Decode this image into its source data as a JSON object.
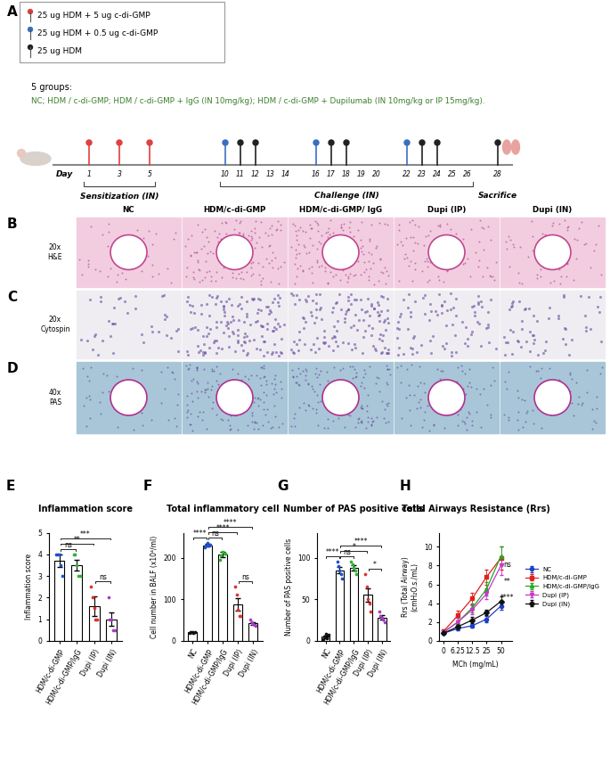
{
  "panel_a": {
    "panel_label": "A",
    "legend": [
      {
        "text": "25 ug HDM + 5 ug c-di-GMP",
        "color": "#e04040"
      },
      {
        "text": "25 ug HDM + 0.5 ug c-di-GMP",
        "color": "#3a6fc0"
      },
      {
        "text": "25 ug HDM",
        "color": "#222222"
      }
    ],
    "groups_heading": "5 groups:",
    "groups_text": "NC; HDM / c-di-GMP; HDM / c-di-GMP + IgG (IN 10mg/kg); HDM / c-di-GMP + Dupilumab (IN 10mg/kg or IP 15mg/kg).",
    "timeline": {
      "day_label": "Day",
      "days": [
        1,
        3,
        5,
        10,
        11,
        12,
        13,
        14,
        16,
        17,
        18,
        19,
        20,
        22,
        23,
        24,
        25,
        26,
        28
      ],
      "pins": [
        {
          "days": [
            1,
            3,
            5
          ],
          "legend": 0
        },
        {
          "days": [
            10,
            16,
            22
          ],
          "legend": 1
        },
        {
          "days": [
            11,
            12,
            17,
            18,
            23,
            24,
            28
          ],
          "legend": 2
        }
      ],
      "phases": [
        {
          "label": "Sensitization (IN)",
          "from": 1,
          "to": 5
        },
        {
          "label": "Challenge (IN)",
          "from": 10,
          "to": 26
        },
        {
          "label": "Sacrifice",
          "from": 28,
          "to": 28
        }
      ]
    }
  },
  "image_panels": {
    "columns": [
      "NC",
      "HDM/c-di-GMP",
      "HDM/c-di-GMP/ IgG",
      "Dupi (IP)",
      "Dupi (IN)"
    ],
    "rows": [
      {
        "panel_label": "B",
        "magnification": "20x",
        "stain": "H&E"
      },
      {
        "panel_label": "C",
        "magnification": "20x",
        "stain": "Cytospin"
      },
      {
        "panel_label": "D",
        "magnification": "40x",
        "stain": "PAS"
      }
    ]
  },
  "chart_data": [
    {
      "type": "bar",
      "panel_label": "E",
      "title": "Inflammation score",
      "y_label": "Inflammation score",
      "categories": [
        "HDM/c-di-GMP",
        "HDM/c-di-GMP/IgG",
        "Dupi (IP)",
        "Dupi (IN)"
      ],
      "values": [
        3.7,
        3.5,
        1.6,
        1.0
      ],
      "errors": [
        0.3,
        0.25,
        0.45,
        0.3
      ],
      "points": [
        [
          4,
          4,
          4,
          3.5,
          3
        ],
        [
          4,
          4,
          3.5,
          3,
          3
        ],
        [
          2.5,
          2,
          1.5,
          1,
          1
        ],
        [
          2,
          1,
          1,
          0.5,
          0.5
        ]
      ],
      "colors": [
        "#1f4fd0",
        "#33b033",
        "#e03030",
        "#a040c0"
      ],
      "ylim": [
        0,
        5
      ],
      "yticks": [
        0,
        1,
        2,
        3,
        4,
        5
      ],
      "significance": [
        {
          "between": [
            "HDM/c-di-GMP",
            "HDM/c-di-GMP/IgG"
          ],
          "label": "ns"
        },
        {
          "between": [
            "Dupi (IP)",
            "Dupi (IN)"
          ],
          "label": "ns"
        },
        {
          "between": [
            "HDM/c-di-GMP",
            "Dupi (IP)"
          ],
          "label": "**"
        },
        {
          "between": [
            "HDM/c-di-GMP",
            "Dupi (IN)"
          ],
          "label": "***"
        }
      ]
    },
    {
      "type": "bar",
      "panel_label": "F",
      "title": "Total inflammatory cell",
      "y_label": "Cell number in BALF (x10⁴/ml)",
      "categories": [
        "NC",
        "HDM/c-di-GMP",
        "HDM/c-di-GMP/IgG",
        "Dupi (IP)",
        "Dupi (IN)"
      ],
      "values": [
        20,
        230,
        207,
        87,
        42
      ],
      "errors": [
        2,
        3,
        6,
        15,
        3
      ],
      "points": [
        [
          18,
          20,
          22,
          19,
          21
        ],
        [
          225,
          230,
          235,
          228,
          232
        ],
        [
          195,
          205,
          215,
          210,
          210
        ],
        [
          130,
          110,
          75,
          60,
          60
        ],
        [
          50,
          45,
          40,
          38,
          37
        ]
      ],
      "colors": [
        "#111111",
        "#1f4fd0",
        "#33b033",
        "#e03030",
        "#a040c0"
      ],
      "ylim": [
        0,
        260
      ],
      "yticks": [
        0,
        100,
        200
      ],
      "significance": [
        {
          "between": [
            "NC",
            "HDM/c-di-GMP"
          ],
          "label": "****"
        },
        {
          "between": [
            "HDM/c-di-GMP",
            "HDM/c-di-GMP/IgG"
          ],
          "label": "ns"
        },
        {
          "between": [
            "Dupi (IP)",
            "Dupi (IN)"
          ],
          "label": "ns"
        },
        {
          "between": [
            "HDM/c-di-GMP",
            "Dupi (IP)"
          ],
          "label": "****"
        },
        {
          "between": [
            "HDM/c-di-GMP",
            "Dupi (IN)"
          ],
          "label": "****"
        }
      ]
    },
    {
      "type": "bar",
      "panel_label": "G",
      "title": "Number of PAS positive cells",
      "y_label": "Number of PAS positive cells",
      "categories": [
        "NC",
        "HDM/c-di-GMP",
        "HDM/c-di-GMP/IgG",
        "Dupi (IP)",
        "Dupi (IN)"
      ],
      "values": [
        5,
        85,
        88,
        55,
        28
      ],
      "errors": [
        1.5,
        4,
        3,
        8,
        2.5
      ],
      "points": [
        [
          2,
          5,
          8,
          3,
          7
        ],
        [
          95,
          90,
          85,
          80,
          75
        ],
        [
          95,
          92,
          88,
          85,
          80
        ],
        [
          80,
          65,
          50,
          45,
          35
        ],
        [
          35,
          30,
          28,
          25,
          22
        ]
      ],
      "colors": [
        "#111111",
        "#1f4fd0",
        "#33b033",
        "#e03030",
        "#a040c0"
      ],
      "ylim": [
        0,
        130
      ],
      "yticks": [
        0,
        50,
        100
      ],
      "significance": [
        {
          "between": [
            "NC",
            "HDM/c-di-GMP"
          ],
          "label": "****"
        },
        {
          "between": [
            "HDM/c-di-GMP",
            "HDM/c-di-GMP/IgG"
          ],
          "label": "ns"
        },
        {
          "between": [
            "Dupi (IP)",
            "Dupi (IN)"
          ],
          "label": "*"
        },
        {
          "between": [
            "HDM/c-di-GMP",
            "Dupi (IP)"
          ],
          "label": "*"
        },
        {
          "between": [
            "HDM/c-di-GMP",
            "Dupi (IN)"
          ],
          "label": "****"
        }
      ]
    },
    {
      "type": "line",
      "panel_label": "H",
      "title": "Total Airways Resistance (Rrs)",
      "x_label": "MCh (mg/mL)",
      "y_label": "Rrs (Total Airway)\n(cmH₂O.s./mL)",
      "categories": [
        "0",
        "6.25",
        "12.5",
        "25",
        "50"
      ],
      "series": [
        {
          "name": "NC",
          "color": "#1f3fbf",
          "marker": "circle",
          "values": [
            0.8,
            1.3,
            1.6,
            2.3,
            3.7
          ],
          "errors": [
            0.1,
            0.2,
            0.2,
            0.3,
            0.4
          ]
        },
        {
          "name": "HDM/c-di-GMP",
          "color": "#e02020",
          "marker": "square",
          "values": [
            1.0,
            2.7,
            4.5,
            6.8,
            8.8
          ],
          "errors": [
            0.2,
            0.5,
            0.6,
            0.8,
            1.2
          ]
        },
        {
          "name": "HDM/c-di-GMP/IgG",
          "color": "#22aa22",
          "marker": "triangle",
          "values": [
            0.9,
            2.0,
            3.5,
            5.5,
            9.0
          ],
          "errors": [
            0.2,
            0.4,
            0.5,
            0.7,
            1.0
          ]
        },
        {
          "name": "Dupi (IP)",
          "color": "#cc33cc",
          "marker": "triangle_down",
          "values": [
            0.9,
            2.0,
            3.3,
            5.0,
            8.0
          ],
          "errors": [
            0.2,
            0.4,
            0.5,
            0.6,
            1.0
          ]
        },
        {
          "name": "Dupi (IN)",
          "color": "#111111",
          "marker": "diamond",
          "values": [
            0.8,
            1.5,
            2.2,
            3.0,
            4.2
          ],
          "errors": [
            0.1,
            0.2,
            0.3,
            0.3,
            0.5
          ]
        }
      ],
      "ylim": [
        0,
        11.5
      ],
      "yticks": [
        0,
        2,
        4,
        6,
        8,
        10
      ],
      "legend": "right",
      "annotations": [
        "ns",
        "**",
        "****"
      ]
    }
  ]
}
